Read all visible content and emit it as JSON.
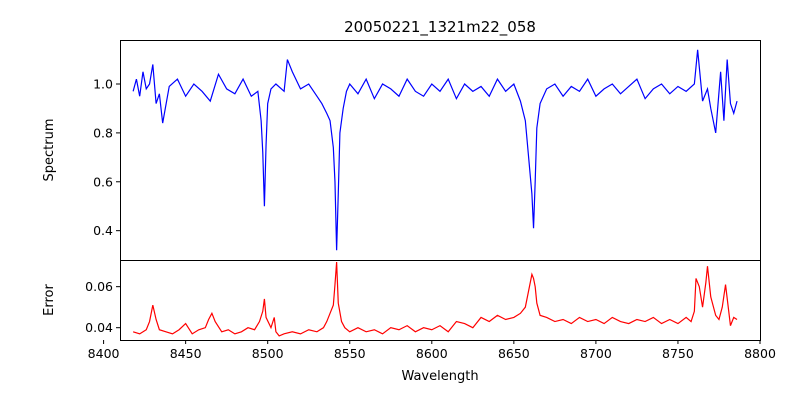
{
  "chart_data": [
    {
      "type": "line",
      "title": "20050221_1321m22_058",
      "xlabel": "",
      "ylabel": "Spectrum",
      "xlim": [
        8410,
        8800
      ],
      "ylim": [
        0.28,
        1.18
      ],
      "yticks": [
        0.4,
        0.6,
        0.8,
        1.0
      ],
      "yticklabels": [
        "0.4",
        "0.6",
        "0.8",
        "1.0"
      ],
      "grid": false,
      "series": [
        {
          "color": "#0000ff",
          "x": [
            8418,
            8420,
            8422,
            8424,
            8426,
            8428,
            8430,
            8432,
            8434,
            8436,
            8440,
            8445,
            8450,
            8455,
            8460,
            8465,
            8470,
            8475,
            8480,
            8485,
            8490,
            8494,
            8496,
            8497,
            8498,
            8499,
            8500,
            8502,
            8505,
            8510,
            8512,
            8515,
            8520,
            8525,
            8530,
            8533,
            8536,
            8538,
            8540,
            8541,
            8542,
            8543,
            8544,
            8546,
            8548,
            8550,
            8555,
            8560,
            8565,
            8570,
            8575,
            8580,
            8585,
            8590,
            8595,
            8600,
            8605,
            8610,
            8615,
            8620,
            8625,
            8630,
            8635,
            8640,
            8645,
            8650,
            8654,
            8657,
            8659,
            8661,
            8662,
            8663,
            8664,
            8666,
            8670,
            8675,
            8680,
            8685,
            8690,
            8695,
            8700,
            8705,
            8710,
            8715,
            8720,
            8725,
            8730,
            8735,
            8740,
            8745,
            8750,
            8755,
            8760,
            8762,
            8765,
            8768,
            8770,
            8773,
            8776,
            8778,
            8780,
            8782,
            8784,
            8786
          ],
          "y": [
            0.97,
            1.02,
            0.95,
            1.05,
            0.98,
            1.0,
            1.08,
            0.92,
            0.96,
            0.84,
            0.99,
            1.02,
            0.95,
            1.0,
            0.97,
            0.93,
            1.04,
            0.98,
            0.96,
            1.02,
            0.95,
            0.97,
            0.85,
            0.72,
            0.5,
            0.75,
            0.92,
            0.98,
            1.0,
            0.97,
            1.1,
            1.05,
            0.98,
            1.0,
            0.95,
            0.92,
            0.88,
            0.85,
            0.74,
            0.6,
            0.32,
            0.55,
            0.8,
            0.9,
            0.97,
            1.0,
            0.96,
            1.02,
            0.94,
            1.0,
            0.98,
            0.95,
            1.02,
            0.97,
            0.95,
            1.0,
            0.97,
            1.02,
            0.94,
            1.0,
            0.97,
            0.99,
            0.95,
            1.02,
            0.97,
            1.0,
            0.93,
            0.85,
            0.7,
            0.55,
            0.41,
            0.6,
            0.82,
            0.92,
            0.98,
            1.0,
            0.95,
            0.99,
            0.97,
            1.02,
            0.95,
            0.98,
            1.0,
            0.96,
            0.99,
            1.02,
            0.94,
            0.98,
            1.0,
            0.96,
            0.99,
            0.97,
            1.0,
            1.14,
            0.93,
            0.98,
            0.9,
            0.8,
            1.05,
            0.85,
            1.1,
            0.92,
            0.88,
            0.93
          ]
        }
      ]
    },
    {
      "type": "line",
      "title": "",
      "xlabel": "Wavelength",
      "ylabel": "Error",
      "xlim": [
        8410,
        8800
      ],
      "ylim": [
        0.034,
        0.073
      ],
      "xticks": [
        8400,
        8450,
        8500,
        8550,
        8600,
        8650,
        8700,
        8750,
        8800
      ],
      "xticklabels": [
        "8400",
        "8450",
        "8500",
        "8550",
        "8600",
        "8650",
        "8700",
        "8750",
        "8800"
      ],
      "yticks": [
        0.04,
        0.06
      ],
      "yticklabels": [
        "0.04",
        "0.06"
      ],
      "grid": false,
      "series": [
        {
          "color": "#ff0000",
          "x": [
            8418,
            8422,
            8426,
            8428,
            8430,
            8432,
            8434,
            8438,
            8442,
            8446,
            8450,
            8454,
            8458,
            8462,
            8464,
            8466,
            8468,
            8472,
            8476,
            8480,
            8484,
            8488,
            8492,
            8495,
            8497,
            8498,
            8499,
            8502,
            8504,
            8505,
            8507,
            8510,
            8515,
            8520,
            8525,
            8530,
            8534,
            8536,
            8538,
            8540,
            8541,
            8542,
            8543,
            8545,
            8547,
            8550,
            8555,
            8560,
            8565,
            8570,
            8575,
            8580,
            8585,
            8590,
            8595,
            8600,
            8605,
            8610,
            8615,
            8620,
            8625,
            8630,
            8635,
            8640,
            8645,
            8650,
            8654,
            8657,
            8659,
            8661,
            8662,
            8663,
            8664,
            8666,
            8670,
            8675,
            8680,
            8685,
            8690,
            8695,
            8700,
            8705,
            8710,
            8715,
            8720,
            8725,
            8730,
            8735,
            8740,
            8745,
            8750,
            8755,
            8758,
            8760,
            8761,
            8763,
            8765,
            8767,
            8768,
            8770,
            8773,
            8775,
            8777,
            8779,
            8782,
            8784,
            8786
          ],
          "y": [
            0.038,
            0.037,
            0.039,
            0.043,
            0.051,
            0.044,
            0.039,
            0.038,
            0.037,
            0.039,
            0.042,
            0.037,
            0.039,
            0.04,
            0.044,
            0.047,
            0.043,
            0.038,
            0.039,
            0.037,
            0.038,
            0.04,
            0.039,
            0.043,
            0.048,
            0.054,
            0.045,
            0.04,
            0.045,
            0.038,
            0.036,
            0.037,
            0.038,
            0.037,
            0.039,
            0.038,
            0.04,
            0.043,
            0.047,
            0.051,
            0.061,
            0.072,
            0.052,
            0.043,
            0.04,
            0.038,
            0.04,
            0.038,
            0.039,
            0.037,
            0.04,
            0.039,
            0.041,
            0.038,
            0.04,
            0.039,
            0.041,
            0.038,
            0.043,
            0.042,
            0.04,
            0.045,
            0.043,
            0.046,
            0.044,
            0.045,
            0.047,
            0.05,
            0.058,
            0.066,
            0.064,
            0.06,
            0.052,
            0.046,
            0.045,
            0.043,
            0.044,
            0.042,
            0.045,
            0.043,
            0.044,
            0.042,
            0.045,
            0.043,
            0.042,
            0.044,
            0.043,
            0.045,
            0.042,
            0.044,
            0.042,
            0.045,
            0.043,
            0.048,
            0.064,
            0.06,
            0.05,
            0.062,
            0.07,
            0.055,
            0.046,
            0.044,
            0.05,
            0.061,
            0.041,
            0.045,
            0.044
          ]
        }
      ]
    }
  ]
}
